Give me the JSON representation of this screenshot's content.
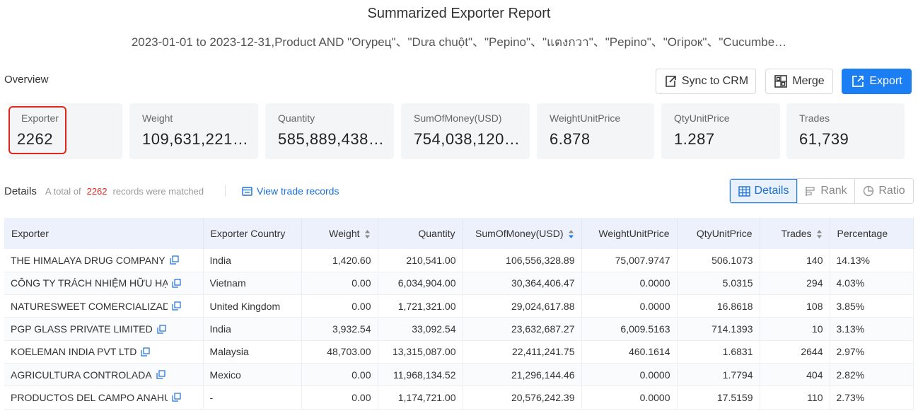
{
  "header": {
    "title": "Summarized Exporter Report",
    "subtitle": "2023-01-01 to 2023-12-31,Product AND \"Огурец\"、\"Dưa chuột\"、\"Pepino\"、\"แตงกวา\"、\"Pepino\"、\"Огірок\"、\"Cucumbe…"
  },
  "overview": {
    "label": "Overview",
    "buttons": {
      "sync": "Sync to CRM",
      "merge": "Merge",
      "export": "Export"
    },
    "cards": [
      {
        "label": "Exporter",
        "value": "2262"
      },
      {
        "label": "Weight",
        "value": "109,631,221…"
      },
      {
        "label": "Quantity",
        "value": "585,889,438…"
      },
      {
        "label": "SumOfMoney(USD)",
        "value": "754,038,120…"
      },
      {
        "label": "WeightUnitPrice",
        "value": "6.878"
      },
      {
        "label": "QtyUnitPrice",
        "value": "1.287"
      },
      {
        "label": "Trades",
        "value": "61,739"
      }
    ]
  },
  "details": {
    "label": "Details",
    "total_prefix": "A total of",
    "total_count": "2262",
    "total_suffix": "records were matched",
    "view_link": "View trade records",
    "views": {
      "details": "Details",
      "rank": "Rank",
      "ratio": "Ratio"
    },
    "active_view": "Details"
  },
  "table": {
    "columns": [
      "Exporter",
      "Exporter Country",
      "Weight",
      "Quantity",
      "SumOfMoney(USD)",
      "WeightUnitPrice",
      "QtyUnitPrice",
      "Trades",
      "Percentage"
    ],
    "rows": [
      {
        "exporter": "THE HIMALAYA DRUG COMPANY",
        "country": "India",
        "weight": "1,420.60",
        "quantity": "210,541.00",
        "sum": "106,556,328.89",
        "wup": "75,007.9747",
        "qup": "506.1073",
        "trades": "140",
        "pct": "14.13%"
      },
      {
        "exporter": "CÔNG TY TRÁCH NHIỆM HỮU HẠN H",
        "country": "Vietnam",
        "weight": "0.00",
        "quantity": "6,034,904.00",
        "sum": "30,364,406.47",
        "wup": "0.0000",
        "qup": "5.0315",
        "trades": "294",
        "pct": "4.03%"
      },
      {
        "exporter": "NATURESWEET COMERCIALIZADOR.",
        "country": "United Kingdom",
        "weight": "0.00",
        "quantity": "1,721,321.00",
        "sum": "29,024,617.88",
        "wup": "0.0000",
        "qup": "16.8618",
        "trades": "108",
        "pct": "3.85%"
      },
      {
        "exporter": "PGP GLASS PRIVATE LIMITED",
        "country": "India",
        "weight": "3,932.54",
        "quantity": "33,092.54",
        "sum": "23,632,687.27",
        "wup": "6,009.5163",
        "qup": "714.1393",
        "trades": "10",
        "pct": "3.13%"
      },
      {
        "exporter": "KOELEMAN INDIA PVT LTD",
        "country": "Malaysia",
        "weight": "48,703.00",
        "quantity": "13,315,087.00",
        "sum": "22,411,241.75",
        "wup": "460.1614",
        "qup": "1.6831",
        "trades": "2644",
        "pct": "2.97%"
      },
      {
        "exporter": "AGRICULTURA CONTROLADA",
        "country": "Mexico",
        "weight": "0.00",
        "quantity": "11,968,134.52",
        "sum": "21,296,144.46",
        "wup": "0.0000",
        "qup": "1.7794",
        "trades": "404",
        "pct": "2.82%"
      },
      {
        "exporter": "PRODUCTOS DEL CAMPO ANAHUAC",
        "country": "-",
        "weight": "0.00",
        "quantity": "1,174,721.00",
        "sum": "20,576,242.39",
        "wup": "0.0000",
        "qup": "17.5159",
        "trades": "110",
        "pct": "2.73%"
      }
    ]
  },
  "colors": {
    "accent": "#1b7ef2",
    "highlight_box": "#e0271d",
    "link": "#1b6fd6",
    "header_bg": "#edf1fb",
    "card_bg": "#f4f5f7"
  }
}
